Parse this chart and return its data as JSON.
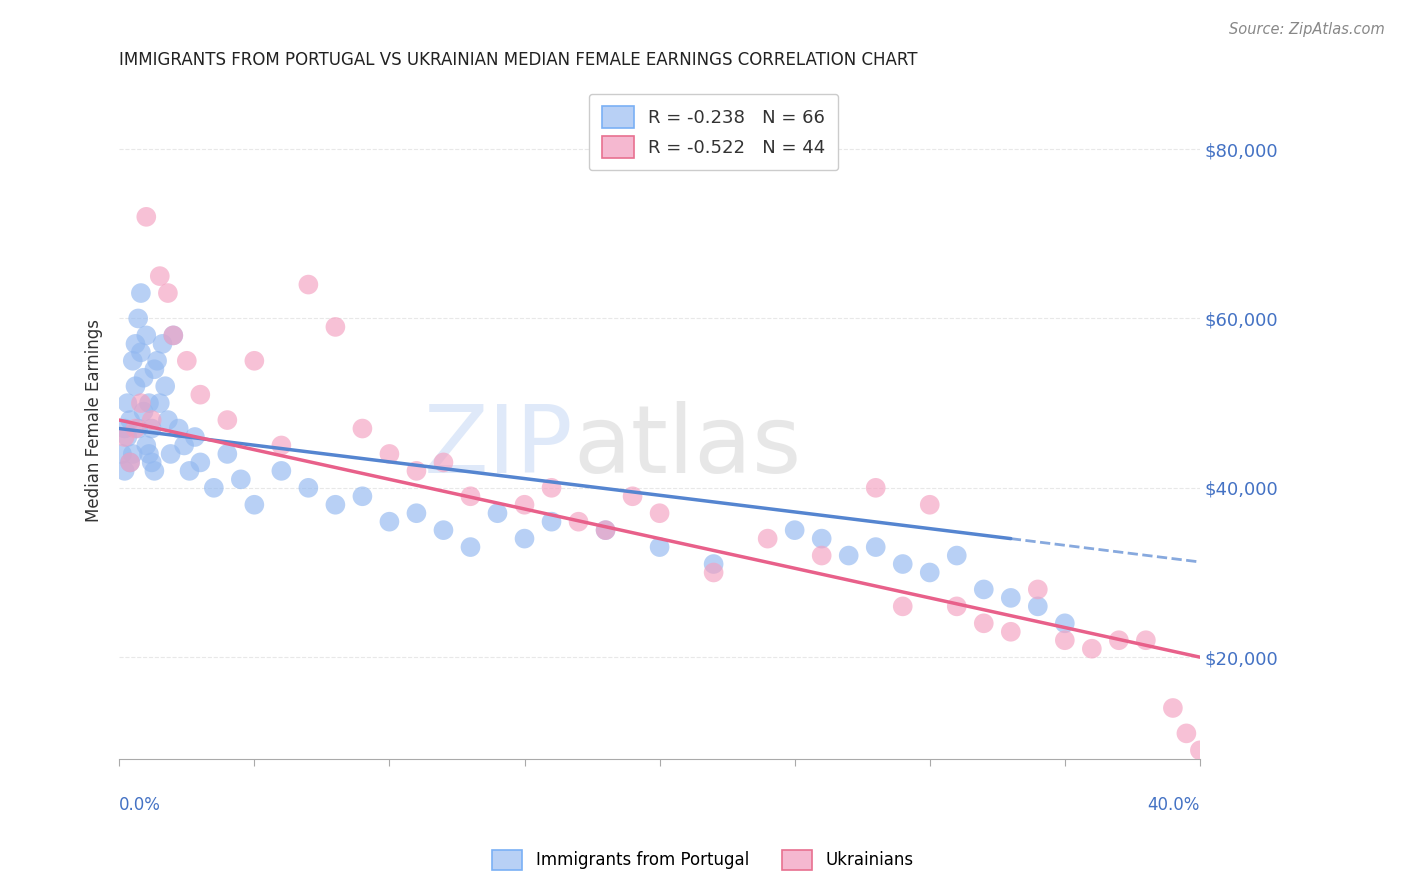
{
  "title": "IMMIGRANTS FROM PORTUGAL VS UKRAINIAN MEDIAN FEMALE EARNINGS CORRELATION CHART",
  "source": "Source: ZipAtlas.com",
  "ylabel": "Median Female Earnings",
  "ytick_labels": [
    "$20,000",
    "$40,000",
    "$60,000",
    "$80,000"
  ],
  "ytick_vals": [
    20000,
    40000,
    60000,
    80000
  ],
  "portugal_color": "#92b8f0",
  "ukraine_color": "#f4a0c0",
  "portugal_line_color": "#5585d0",
  "ukraine_line_color": "#e8608a",
  "legend_label_portugal": "R = -0.238   N = 66",
  "legend_label_ukraine": "R = -0.522   N = 44",
  "legend_bottom_portugal": "Immigrants from Portugal",
  "legend_bottom_ukraine": "Ukrainians",
  "xlim": [
    0.0,
    0.4
  ],
  "ylim": [
    8000,
    88000
  ],
  "background_color": "#ffffff",
  "grid_color": "#e8e8e8",
  "portugal_scatter_x": [
    0.001,
    0.002,
    0.002,
    0.003,
    0.003,
    0.004,
    0.004,
    0.005,
    0.005,
    0.006,
    0.006,
    0.007,
    0.007,
    0.008,
    0.008,
    0.009,
    0.009,
    0.01,
    0.01,
    0.011,
    0.011,
    0.012,
    0.012,
    0.013,
    0.013,
    0.014,
    0.015,
    0.016,
    0.017,
    0.018,
    0.019,
    0.02,
    0.022,
    0.024,
    0.026,
    0.028,
    0.03,
    0.035,
    0.04,
    0.045,
    0.05,
    0.06,
    0.07,
    0.08,
    0.09,
    0.1,
    0.11,
    0.12,
    0.13,
    0.14,
    0.15,
    0.16,
    0.18,
    0.2,
    0.22,
    0.25,
    0.26,
    0.27,
    0.28,
    0.29,
    0.3,
    0.31,
    0.32,
    0.33,
    0.34,
    0.35
  ],
  "portugal_scatter_y": [
    44000,
    42000,
    47000,
    46000,
    50000,
    43000,
    48000,
    55000,
    44000,
    57000,
    52000,
    60000,
    47000,
    63000,
    56000,
    53000,
    49000,
    45000,
    58000,
    44000,
    50000,
    47000,
    43000,
    54000,
    42000,
    55000,
    50000,
    57000,
    52000,
    48000,
    44000,
    58000,
    47000,
    45000,
    42000,
    46000,
    43000,
    40000,
    44000,
    41000,
    38000,
    42000,
    40000,
    38000,
    39000,
    36000,
    37000,
    35000,
    33000,
    37000,
    34000,
    36000,
    35000,
    33000,
    31000,
    35000,
    34000,
    32000,
    33000,
    31000,
    30000,
    32000,
    28000,
    27000,
    26000,
    24000
  ],
  "ukraine_scatter_x": [
    0.002,
    0.004,
    0.006,
    0.008,
    0.01,
    0.012,
    0.015,
    0.018,
    0.02,
    0.025,
    0.03,
    0.04,
    0.05,
    0.06,
    0.07,
    0.08,
    0.09,
    0.1,
    0.11,
    0.12,
    0.13,
    0.15,
    0.16,
    0.17,
    0.18,
    0.19,
    0.2,
    0.22,
    0.24,
    0.26,
    0.28,
    0.29,
    0.3,
    0.31,
    0.32,
    0.33,
    0.34,
    0.35,
    0.36,
    0.37,
    0.38,
    0.39,
    0.395,
    0.4
  ],
  "ukraine_scatter_y": [
    46000,
    43000,
    47000,
    50000,
    72000,
    48000,
    65000,
    63000,
    58000,
    55000,
    51000,
    48000,
    55000,
    45000,
    64000,
    59000,
    47000,
    44000,
    42000,
    43000,
    39000,
    38000,
    40000,
    36000,
    35000,
    39000,
    37000,
    30000,
    34000,
    32000,
    40000,
    26000,
    38000,
    26000,
    24000,
    23000,
    28000,
    22000,
    21000,
    22000,
    22000,
    14000,
    11000,
    9000
  ],
  "portugal_trend_x": [
    0.0,
    0.33
  ],
  "portugal_trend_y": [
    47000,
    34000
  ],
  "ukraine_trend_x": [
    0.0,
    0.4
  ],
  "ukraine_trend_y": [
    48000,
    20000
  ]
}
